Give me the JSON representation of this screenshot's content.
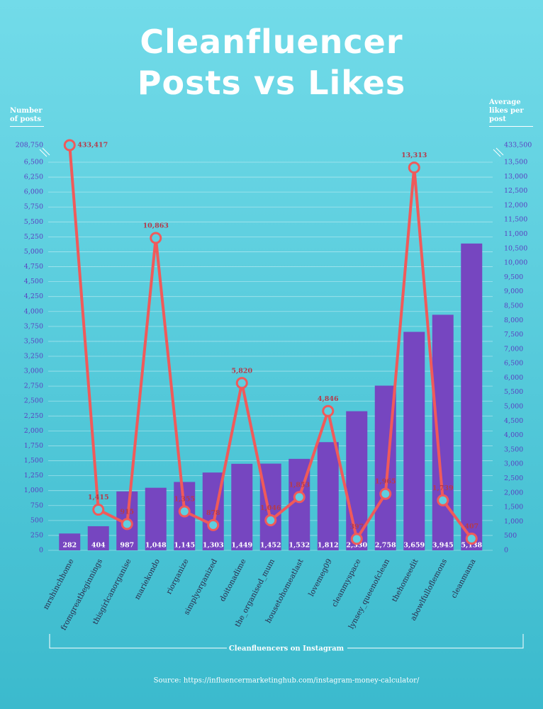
{
  "chart_data": {
    "type": "combo",
    "title": "Cleanfluencer Posts vs Likes",
    "ylabel": "Number of posts",
    "y2label": "Average likes per post",
    "xlabel": "Cleanfluencers on Instagram",
    "source": "Source: https://influencermarketinghub.com/instagram-money-calculator/",
    "categories": [
      "mrshinchhome",
      "fromgreatbeginnings",
      "thisgirlcanorganise",
      "mariekondo",
      "riorganize",
      "simplyorganized",
      "doitonadime",
      "the_organised_mum",
      "housetohomeatlast",
      "lovemeg09",
      "cleanmyspace",
      "lynsey_queenofclean",
      "thehomeedit",
      "abowlfulloflemons",
      "cleanmama"
    ],
    "series": [
      {
        "type": "bar",
        "color": "#7646c0",
        "values": [
          282,
          404,
          987,
          1048,
          1145,
          1303,
          1449,
          1452,
          1532,
          1812,
          2330,
          2758,
          3659,
          3945,
          5138
        ],
        "value_labels": [
          "282",
          "404",
          "987",
          "1,048",
          "1,145",
          "1,303",
          "1,449",
          "1,452",
          "1,532",
          "1,812",
          "2,330",
          "2,758",
          "3,659",
          "3,945",
          "5,138"
        ]
      },
      {
        "type": "line",
        "axis": "y2",
        "color": "#f05a5a",
        "values": [
          433417,
          1415,
          915,
          10863,
          1355,
          878,
          5820,
          1046,
          1853,
          4846,
          397,
          1965,
          13313,
          1739,
          407
        ],
        "value_labels": [
          "433,417",
          "1,415",
          "915",
          "10,863",
          "1,355",
          "878",
          "5,820",
          "1,046",
          "1,853",
          "4,846",
          "397",
          "1,965",
          "13,313",
          "1,739",
          "407"
        ]
      }
    ],
    "ylim": [
      0,
      208750
    ],
    "yticks": [
      0,
      250,
      500,
      750,
      {
        "value": 1000,
        "label": "1,000"
      },
      {
        "value": 1250,
        "label": "1,250"
      },
      {
        "value": 1500,
        "label": "1,500"
      },
      {
        "value": 1750,
        "label": "1,750"
      },
      {
        "value": 2000,
        "label": "2,000"
      },
      {
        "value": 2250,
        "label": "2,250"
      },
      {
        "value": 2500,
        "label": "2,500"
      },
      {
        "value": 2750,
        "label": "2,750"
      },
      {
        "value": 3000,
        "label": "3,000"
      },
      {
        "value": 3250,
        "label": "3,250"
      },
      {
        "value": 3500,
        "label": "3,500"
      },
      {
        "value": 3750,
        "label": "3,750"
      },
      {
        "value": 4000,
        "label": "4,000"
      },
      {
        "value": 4250,
        "label": "4,250"
      },
      {
        "value": 4500,
        "label": "4,500"
      },
      {
        "value": 4750,
        "label": "4,750"
      },
      {
        "value": 5000,
        "label": "5,000"
      },
      {
        "value": 5250,
        "label": "5,250"
      },
      {
        "value": 5500,
        "label": "5,500"
      },
      {
        "value": 5750,
        "label": "5,750"
      },
      {
        "value": 6000,
        "label": "6,000"
      },
      {
        "value": 6250,
        "label": "6,250"
      },
      {
        "value": 6500,
        "label": "6,500"
      },
      {
        "value": 208750,
        "label": "208,750"
      }
    ],
    "y2lim": [
      0,
      433500
    ],
    "y2ticks": [
      0,
      500,
      {
        "value": 1000,
        "label": "1,000"
      },
      {
        "value": 1500,
        "label": "1,500"
      },
      {
        "value": 2000,
        "label": "2,000"
      },
      {
        "value": 2500,
        "label": "2,500"
      },
      {
        "value": 3000,
        "label": "3,000"
      },
      {
        "value": 3500,
        "label": "3,500"
      },
      {
        "value": 4000,
        "label": "4,000"
      },
      {
        "value": 4500,
        "label": "4,500"
      },
      {
        "value": 5000,
        "label": "5,000"
      },
      {
        "value": 5500,
        "label": "5,500"
      },
      {
        "value": 6000,
        "label": "6,000"
      },
      {
        "value": 6500,
        "label": "6,500"
      },
      {
        "value": 7000,
        "label": "7,000"
      },
      {
        "value": 7500,
        "label": "7,500"
      },
      {
        "value": 8000,
        "label": "8,000"
      },
      {
        "value": 8500,
        "label": "8,500"
      },
      {
        "value": 9000,
        "label": "9,000"
      },
      {
        "value": 9500,
        "label": "9,500"
      },
      {
        "value": 10000,
        "label": "10,000"
      },
      {
        "value": 10500,
        "label": "10,500"
      },
      {
        "value": 11000,
        "label": "11,000"
      },
      {
        "value": 11500,
        "label": "11,500"
      },
      {
        "value": 12000,
        "label": "12,000"
      },
      {
        "value": 12500,
        "label": "12,500"
      },
      {
        "value": 13000,
        "label": "13,000"
      },
      {
        "value": 13500,
        "label": "13,500"
      },
      {
        "value": 433500,
        "label": "433,500"
      }
    ],
    "axis_break": true,
    "grid": true
  }
}
